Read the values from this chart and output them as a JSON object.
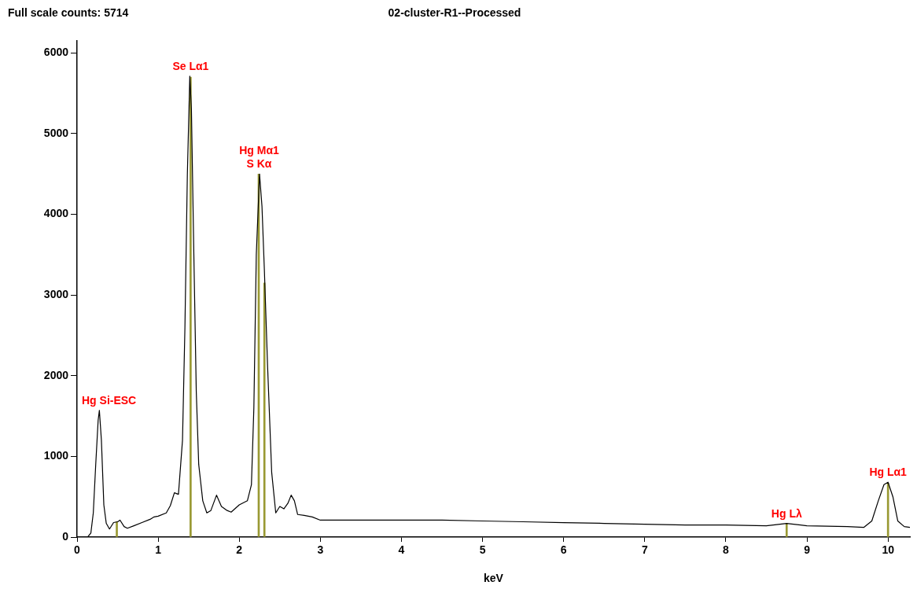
{
  "chart_data": {
    "type": "line",
    "title": "02-cluster-R1--Processed",
    "xlabel": "keV",
    "annotations": [
      "Full scale counts: 5714",
      {
        "text": "Hg Si-ESC",
        "x": 0.275,
        "y": 1570
      },
      {
        "text": "Se Lα1",
        "x": 1.4,
        "y": 5700
      },
      {
        "text": "Hg Mα1",
        "x": 2.24,
        "y": 4500
      },
      {
        "text": "S Kα",
        "x": 2.25,
        "y": 4500
      },
      {
        "text": "Hg Lλ",
        "x": 8.75,
        "y": 170
      },
      {
        "text": "Hg Lα1",
        "x": 10.0,
        "y": 670
      }
    ],
    "series": [
      {
        "type": "bar",
        "color": "#999933",
        "x": [
          0.49,
          1.4,
          2.24,
          2.31,
          8.75,
          10.0
        ],
        "values": [
          190,
          5700,
          4500,
          3150,
          170,
          670
        ]
      },
      {
        "color": "#000000",
        "x": [
          0,
          0.1,
          0.13,
          0.17,
          0.2,
          0.23,
          0.26,
          0.275,
          0.3,
          0.33,
          0.36,
          0.4,
          0.45,
          0.5,
          0.53,
          0.58,
          0.62,
          0.7,
          0.8,
          0.9,
          0.95,
          1.0,
          1.1,
          1.15,
          1.2,
          1.25,
          1.3,
          1.33,
          1.36,
          1.39,
          1.41,
          1.44,
          1.47,
          1.5,
          1.55,
          1.6,
          1.65,
          1.72,
          1.78,
          1.85,
          1.9,
          2.0,
          2.1,
          2.15,
          2.18,
          2.21,
          2.25,
          2.28,
          2.31,
          2.35,
          2.4,
          2.45,
          2.5,
          2.55,
          2.6,
          2.64,
          2.68,
          2.72,
          2.8,
          2.9,
          3.0,
          3.5,
          4,
          4.5,
          5,
          5.5,
          6,
          6.5,
          7,
          7.5,
          8,
          8.5,
          8.75,
          9,
          9.5,
          9.7,
          9.8,
          9.88,
          9.95,
          10.0,
          10.06,
          10.12,
          10.2,
          10.27
        ],
        "values": [
          0,
          0,
          0,
          50,
          300,
          900,
          1450,
          1570,
          1200,
          400,
          170,
          100,
          180,
          190,
          210,
          130,
          110,
          140,
          180,
          220,
          250,
          260,
          300,
          390,
          550,
          530,
          1200,
          2600,
          4500,
          5714,
          5300,
          3500,
          1800,
          900,
          450,
          300,
          330,
          520,
          380,
          330,
          310,
          400,
          450,
          650,
          1600,
          3500,
          4500,
          4100,
          3300,
          2100,
          800,
          300,
          380,
          350,
          420,
          520,
          450,
          280,
          270,
          250,
          210,
          210,
          210,
          210,
          200,
          190,
          180,
          170,
          160,
          150,
          150,
          140,
          170,
          140,
          130,
          120,
          200,
          450,
          650,
          680,
          500,
          200,
          130,
          120
        ]
      }
    ],
    "xlim": [
      0,
      10.27
    ],
    "xticks": [
      0,
      1,
      2,
      3,
      4,
      5,
      6,
      7,
      8,
      9,
      10
    ],
    "ylim": [
      0,
      6150
    ],
    "yticks": [
      0,
      1000,
      2000,
      3000,
      4000,
      5000,
      6000
    ],
    "grid": false,
    "legend": false,
    "marker": "none",
    "line_style": "solid"
  }
}
